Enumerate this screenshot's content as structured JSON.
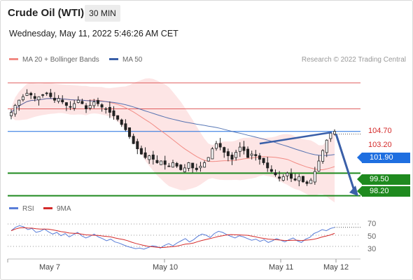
{
  "header": {
    "instrument": "Crude Oil (WTI)",
    "timeframe": "30 MIN",
    "datetime": "Wednesday, May 11, 2022 5:46:26 AM CET"
  },
  "legend": {
    "ma20_label": "MA 20 + Bollinger Bands",
    "ma50_label": "MA 50",
    "research": "Research © 2022 Trading Central",
    "rsi_label": "RSI",
    "ma9_label": "9MA"
  },
  "colors": {
    "ma20": "#f28b84",
    "ma50": "#3a5fa8",
    "band_fill": "#fde0e0",
    "resistance": "#e06060",
    "support": "#1f8a1f",
    "current": "#1f6fe0",
    "trend_arrow": "#3a5fa8",
    "rsi": "#5a7ed8",
    "rsi_ma": "#d42a2a"
  },
  "chart_data": {
    "type": "candlestick",
    "x_labels": [
      "May 7",
      "May 10",
      "May 11",
      "May 12"
    ],
    "close_path": [
      103.0,
      103.4,
      103.7,
      103.9,
      104.1,
      104.0,
      103.8,
      103.9,
      104.0,
      104.1,
      103.9,
      103.7,
      103.8,
      103.6,
      103.4,
      103.3,
      103.5,
      103.7,
      103.5,
      103.2,
      103.4,
      103.6,
      103.5,
      103.3,
      103.2,
      103.0,
      102.8,
      102.6,
      102.3,
      102.0,
      101.6,
      101.2,
      100.9,
      100.6,
      100.4,
      100.5,
      100.3,
      100.1,
      100.2,
      100.0,
      99.9,
      100.1,
      99.9,
      99.7,
      99.8,
      100.1,
      99.8,
      99.7,
      99.9,
      100.1,
      100.4,
      100.9,
      101.2,
      101.0,
      100.7,
      100.5,
      100.3,
      100.7,
      101.0,
      100.8,
      100.4,
      100.6,
      100.5,
      100.3,
      100.1,
      99.8,
      99.6,
      99.4,
      99.2,
      99.3,
      99.5,
      99.2,
      99.1,
      99.3,
      99.0,
      98.9,
      99.1,
      99.6,
      100.2,
      100.8,
      101.4,
      101.8,
      101.9
    ],
    "price_range": [
      97.7,
      105.6
    ],
    "levels": {
      "resistance": [
        104.7,
        103.2
      ],
      "current": 101.9,
      "support": [
        99.5,
        98.2
      ]
    },
    "resistance_labels": [
      "104.70",
      "103.20"
    ],
    "current_label": "101.90",
    "support_labels": [
      "99.50",
      "98.20"
    ],
    "rsi": {
      "levels": [
        70,
        50,
        30
      ],
      "level_labels": [
        "70",
        "50",
        "30"
      ],
      "range": [
        10,
        90
      ],
      "values": [
        58,
        64,
        67,
        65,
        60,
        62,
        55,
        57,
        61,
        56,
        52,
        55,
        49,
        53,
        47,
        51,
        55,
        49,
        45,
        48,
        52,
        47,
        44,
        40,
        43,
        38,
        36,
        33,
        30,
        28,
        26,
        27,
        25,
        28,
        31,
        30,
        27,
        32,
        35,
        31,
        36,
        40,
        44,
        38,
        42,
        48,
        52,
        50,
        46,
        53,
        57,
        55,
        51,
        48,
        45,
        49,
        47,
        44,
        41,
        43,
        39,
        42,
        37,
        40,
        44,
        41,
        38,
        42,
        45,
        40,
        37,
        43,
        46,
        53,
        56,
        60,
        58,
        62,
        64
      ]
    }
  }
}
